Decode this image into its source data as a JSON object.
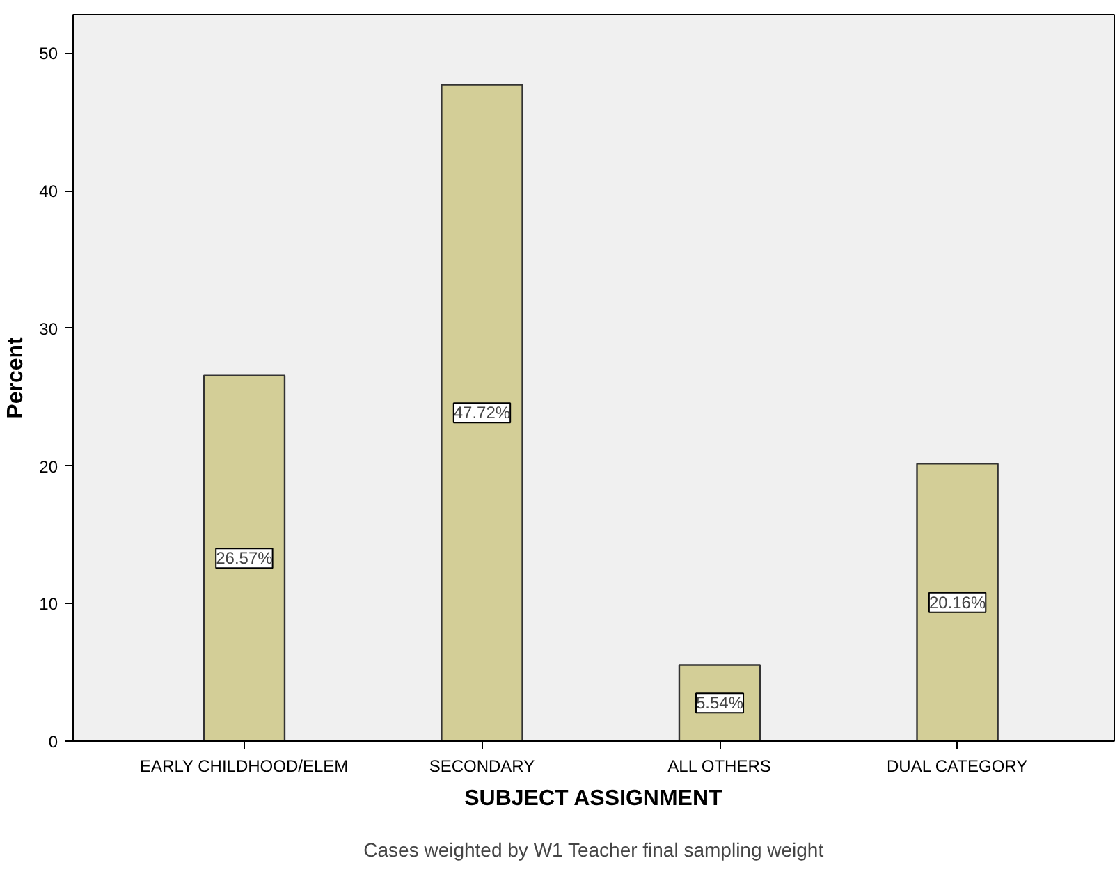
{
  "chart_data": {
    "type": "bar",
    "xlabel": "SUBJECT ASSIGNMENT",
    "ylabel": "Percent",
    "categories": [
      "EARLY CHILDHOOD/ELEM",
      "SECONDARY",
      "ALL OTHERS",
      "DUAL CATEGORY"
    ],
    "values": [
      26.57,
      47.72,
      5.54,
      20.16
    ],
    "value_labels": [
      "26.57%",
      "47.72%",
      "5.54%",
      "20.16%"
    ],
    "color": "#d3ce97",
    "ylim": [
      0,
      52.8
    ],
    "yticks": [
      0,
      10,
      20,
      30,
      40,
      50
    ],
    "grid": false,
    "annotations": [
      "Cases weighted by W1 Teacher final sampling weight"
    ]
  }
}
